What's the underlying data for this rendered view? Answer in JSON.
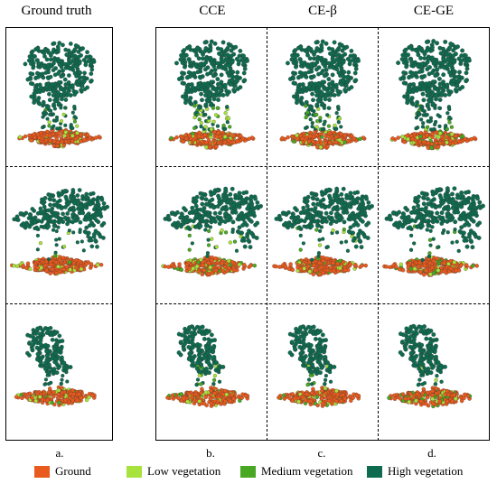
{
  "headers": {
    "col1": "Ground truth",
    "col2": "CCE",
    "col3": "CE-β",
    "col4": "CE-GE"
  },
  "sublabels": [
    "a.",
    "b.",
    "c.",
    "d."
  ],
  "legend": [
    {
      "label": "Ground",
      "color": "#e85a1e"
    },
    {
      "label": "Low vegetation",
      "color": "#a8e23c"
    },
    {
      "label": "Medium vegetation",
      "color": "#49a823"
    },
    {
      "label": "High vegetation",
      "color": "#0f6b4f"
    }
  ]
}
